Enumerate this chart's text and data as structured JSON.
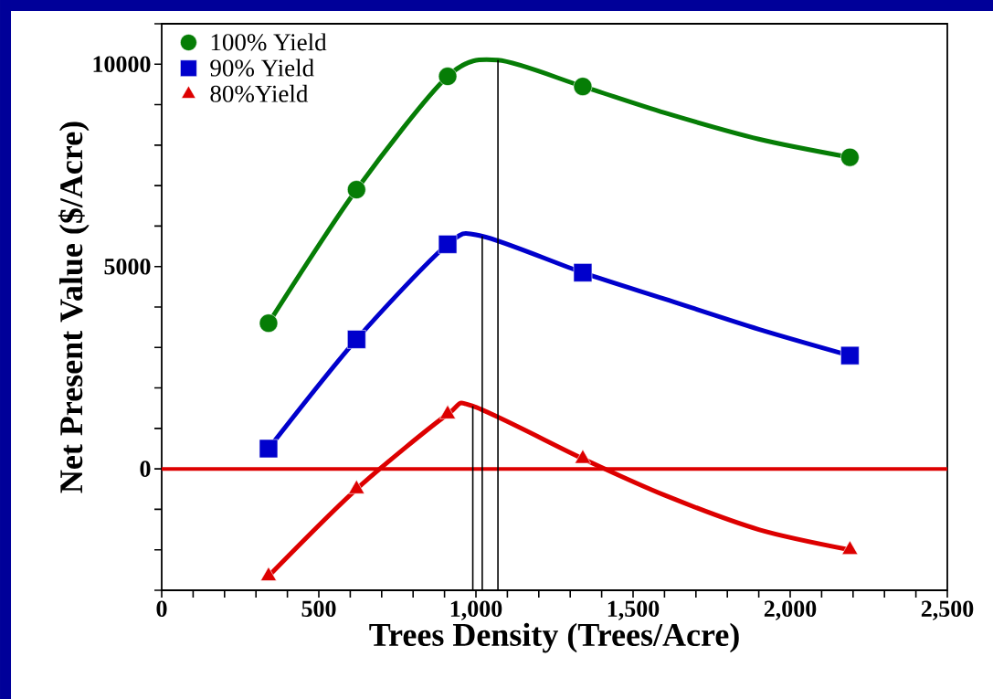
{
  "chart_data": {
    "type": "line",
    "xlabel": "Trees Density (Trees/Acre)",
    "ylabel": "Net Present Value ($/Acre)",
    "xlim": [
      0,
      2500
    ],
    "ylim": [
      -3000,
      11000
    ],
    "xticks": [
      0,
      {
        "value": 100,
        "label": null
      },
      {
        "value": 200,
        "label": null
      },
      {
        "value": 300,
        "label": null
      },
      {
        "value": 400,
        "label": null
      },
      500,
      {
        "value": 600,
        "label": null
      },
      {
        "value": 700,
        "label": null
      },
      {
        "value": 800,
        "label": null
      },
      {
        "value": 900,
        "label": null
      },
      {
        "value": 1000,
        "label": "1,000"
      },
      {
        "value": 1100,
        "label": null
      },
      {
        "value": 1200,
        "label": null
      },
      {
        "value": 1300,
        "label": null
      },
      {
        "value": 1400,
        "label": null
      },
      {
        "value": 1500,
        "label": "1,500"
      },
      {
        "value": 1600,
        "label": null
      },
      {
        "value": 1700,
        "label": null
      },
      {
        "value": 1800,
        "label": null
      },
      {
        "value": 1900,
        "label": null
      },
      {
        "value": 2000,
        "label": "2,000"
      },
      {
        "value": 2100,
        "label": null
      },
      {
        "value": 2200,
        "label": null
      },
      {
        "value": 2300,
        "label": null
      },
      {
        "value": 2400,
        "label": null
      },
      {
        "value": 2500,
        "label": "2,500"
      }
    ],
    "yticks": [
      {
        "value": -3000,
        "label": null
      },
      {
        "value": -2000,
        "label": null
      },
      {
        "value": -1000,
        "label": null
      },
      0,
      {
        "value": 1000,
        "label": null
      },
      {
        "value": 2000,
        "label": null
      },
      {
        "value": 3000,
        "label": null
      },
      {
        "value": 4000,
        "label": null
      },
      5000,
      {
        "value": 6000,
        "label": null
      },
      {
        "value": 7000,
        "label": null
      },
      {
        "value": 8000,
        "label": null
      },
      {
        "value": 9000,
        "label": null
      },
      10000,
      {
        "value": 11000,
        "label": null
      }
    ],
    "grid": false,
    "legend": "top left",
    "marker": "none",
    "ref_lines": [
      {
        "axis": "y",
        "value": 0,
        "color": "#dd0000"
      }
    ],
    "series": [
      {
        "name": "100% Yield",
        "type": "scatter",
        "marker": "circle",
        "color": "#067d06",
        "x": [
          340,
          620,
          910,
          1340,
          2190
        ],
        "values": [
          3600,
          6900,
          9700,
          9450,
          7700
        ]
      },
      {
        "name": "90% Yield",
        "type": "scatter",
        "marker": "square",
        "color": "#0000cc",
        "x": [
          340,
          620,
          910,
          1340,
          2190
        ],
        "values": [
          500,
          3200,
          5550,
          4850,
          2800
        ]
      },
      {
        "name": "80%Yield",
        "type": "scatter",
        "marker": "triangle",
        "color": "#dd0000",
        "x": [
          340,
          620,
          910,
          1340,
          2190
        ],
        "values": [
          -2650,
          -500,
          1350,
          250,
          -2000
        ]
      },
      {
        "color": "#067d06",
        "x": [
          340,
          620,
          910,
          1070,
          1340,
          1600,
          1900,
          2190
        ],
        "values": [
          3600,
          6900,
          9700,
          10100,
          9450,
          8800,
          8150,
          7700
        ]
      },
      {
        "color": "#0000cc",
        "x": [
          340,
          620,
          910,
          1020,
          1340,
          1600,
          1900,
          2190
        ],
        "values": [
          500,
          3200,
          5550,
          5750,
          4850,
          4200,
          3450,
          2800
        ]
      },
      {
        "color": "#dd0000",
        "x": [
          340,
          620,
          910,
          990,
          1340,
          1600,
          1900,
          2190
        ],
        "values": [
          -2650,
          -500,
          1350,
          1550,
          250,
          -650,
          -1500,
          -2000
        ]
      },
      {
        "color": "#000000",
        "x": [
          1070,
          1070
        ],
        "values": [
          -3000,
          10100
        ]
      },
      {
        "color": "#000000",
        "x": [
          1020,
          1020
        ],
        "values": [
          -3000,
          5750
        ]
      },
      {
        "color": "#000000",
        "x": [
          990,
          990
        ],
        "values": [
          -3000,
          1550
        ]
      }
    ]
  }
}
